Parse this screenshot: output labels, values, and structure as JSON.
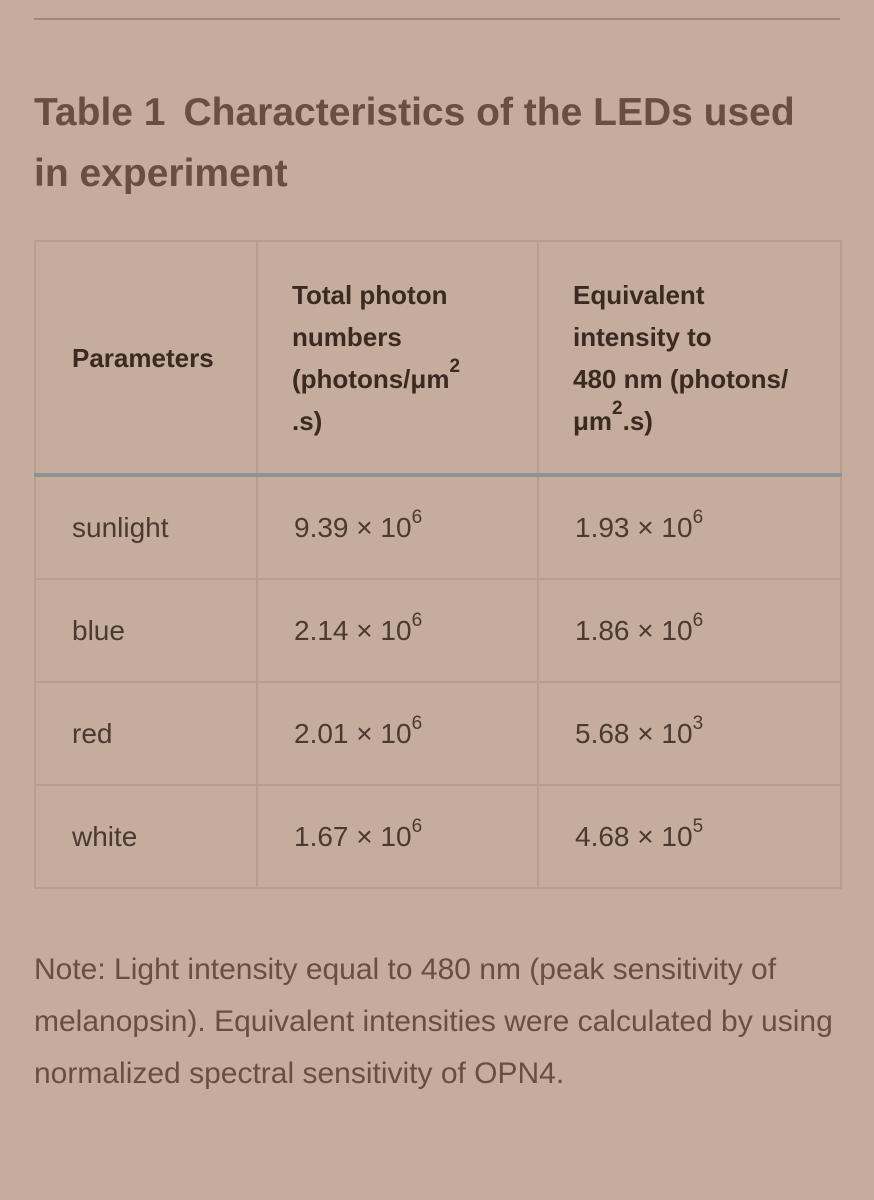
{
  "title": {
    "label": "Table 1",
    "text": "Characteristics of the LEDs used in experiment"
  },
  "table": {
    "headers": [
      {
        "lines": [
          "Parameters"
        ],
        "sup": "",
        "tail": ""
      },
      {
        "lines": [
          "Total photon",
          "numbers",
          "(photons/μm"
        ],
        "sup": "2",
        "tail": ".s)"
      },
      {
        "lines": [
          "Equivalent",
          "intensity to",
          "480 nm (photons/",
          "μm"
        ],
        "sup": "2",
        "tail": ".s)"
      }
    ],
    "rows": [
      {
        "parameter": "sunlight",
        "total": {
          "base": "9.39 × 10",
          "exp": "6"
        },
        "equivalent": {
          "base": "1.93 × 10",
          "exp": "6"
        }
      },
      {
        "parameter": "blue",
        "total": {
          "base": "2.14 × 10",
          "exp": "6"
        },
        "equivalent": {
          "base": "1.86 × 10",
          "exp": "6"
        }
      },
      {
        "parameter": "red",
        "total": {
          "base": "2.01 × 10",
          "exp": "6"
        },
        "equivalent": {
          "base": "5.68 × 10",
          "exp": "3"
        }
      },
      {
        "parameter": "white",
        "total": {
          "base": "1.67 × 10",
          "exp": "6"
        },
        "equivalent": {
          "base": "4.68 × 10",
          "exp": "5"
        }
      }
    ]
  },
  "note": "Note: Light intensity equal to 480 nm (peak sensitivity of melanopsin). Equivalent intensities were calculated by using normalized spectral sensitivity of OPN4.",
  "colors": {
    "background": "#c5ac9c",
    "title": "#6a4f40",
    "header_rule": "#8e9494"
  }
}
